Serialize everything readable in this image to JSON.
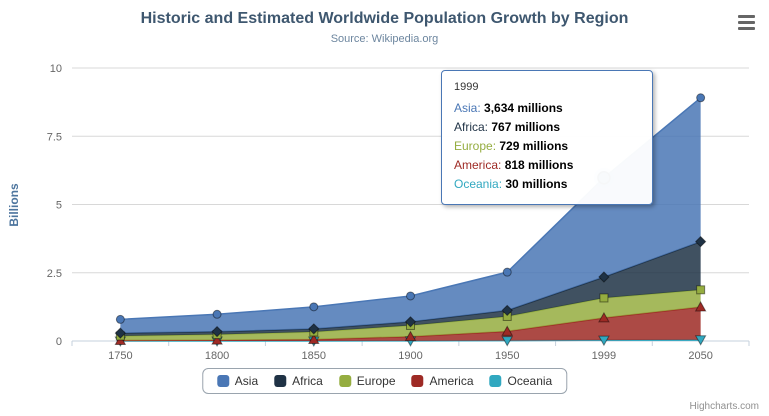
{
  "chart_data": {
    "type": "area",
    "stacking": "normal",
    "stack_order": "first-series-on-top",
    "title": "Historic and Estimated Worldwide Population Growth by Region",
    "subtitle": "Source: Wikipedia.org",
    "xlabel": "",
    "ylabel": "Billions",
    "categories": [
      "1750",
      "1800",
      "1850",
      "1900",
      "1950",
      "1999",
      "2050"
    ],
    "ylim": [
      0,
      10
    ],
    "yticks": [
      0,
      2.5,
      5,
      7.5,
      10
    ],
    "grid": true,
    "legend_position": "bottom-center",
    "values_unit": "millions",
    "series": [
      {
        "name": "Asia",
        "color": "#4a77b5",
        "marker": "circle",
        "values": [
          502,
          635,
          809,
          947,
          1402,
          3634,
          5268
        ]
      },
      {
        "name": "Africa",
        "color": "#1f3245",
        "marker": "diamond",
        "values": [
          106,
          107,
          111,
          133,
          221,
          767,
          1766
        ]
      },
      {
        "name": "Europe",
        "color": "#95ad40",
        "marker": "square",
        "values": [
          163,
          203,
          276,
          408,
          547,
          729,
          628
        ]
      },
      {
        "name": "America",
        "color": "#9e2a25",
        "marker": "triangle",
        "values": [
          18,
          31,
          54,
          156,
          339,
          818,
          1201
        ]
      },
      {
        "name": "Oceania",
        "color": "#31a8c0",
        "marker": "triangle-down",
        "values": [
          2,
          2,
          2,
          6,
          13,
          30,
          46
        ]
      }
    ],
    "highlight": {
      "series": "Asia",
      "category": "1999"
    }
  },
  "tooltip": {
    "header": "1999",
    "rows": [
      {
        "label": "Asia",
        "value": "3,634 millions"
      },
      {
        "label": "Africa",
        "value": "767 millions"
      },
      {
        "label": "Europe",
        "value": "729 millions"
      },
      {
        "label": "America",
        "value": "818 millions"
      },
      {
        "label": "Oceania",
        "value": "30 millions"
      }
    ]
  },
  "credits": "Highcharts.com"
}
